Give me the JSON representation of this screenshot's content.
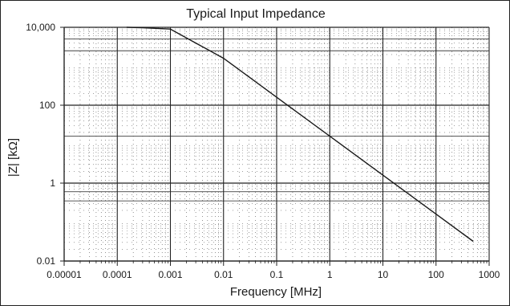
{
  "chart_data": {
    "type": "line",
    "title": "Typical Input Impedance",
    "xlabel": "Frequency [MHz]",
    "ylabel": "|Z| [kΩ]",
    "x_scale": "log",
    "y_scale": "log",
    "xlim": [
      1e-05,
      1000
    ],
    "ylim": [
      0.01,
      10000
    ],
    "grid": true,
    "x_ticks": [
      {
        "value": 1e-05,
        "label": "0.00001"
      },
      {
        "value": 0.0001,
        "label": "0.0001"
      },
      {
        "value": 0.001,
        "label": "0.001"
      },
      {
        "value": 0.01,
        "label": "0.01"
      },
      {
        "value": 0.1,
        "label": "0.1"
      },
      {
        "value": 1,
        "label": "1"
      },
      {
        "value": 10,
        "label": "10"
      },
      {
        "value": 100,
        "label": "100"
      },
      {
        "value": 1000,
        "label": "1000"
      }
    ],
    "y_ticks": [
      {
        "value": 0.01,
        "label": "0.01"
      },
      {
        "value": 1,
        "label": "1"
      },
      {
        "value": 100,
        "label": "100"
      },
      {
        "value": 10000,
        "label": "10,000"
      }
    ],
    "y_extra_gridlines": [
      0.35,
      0.6,
      16,
      2500,
      5000
    ],
    "series": [
      {
        "x": [
          0.00015,
          0.0003,
          0.001,
          0.01,
          0.1,
          1,
          10,
          100,
          500
        ],
        "y": [
          10000,
          9700,
          9000,
          1600,
          160,
          16,
          1.6,
          0.16,
          0.032
        ]
      }
    ],
    "line_color": "#1a1a1a",
    "grid_color": "#222222"
  }
}
